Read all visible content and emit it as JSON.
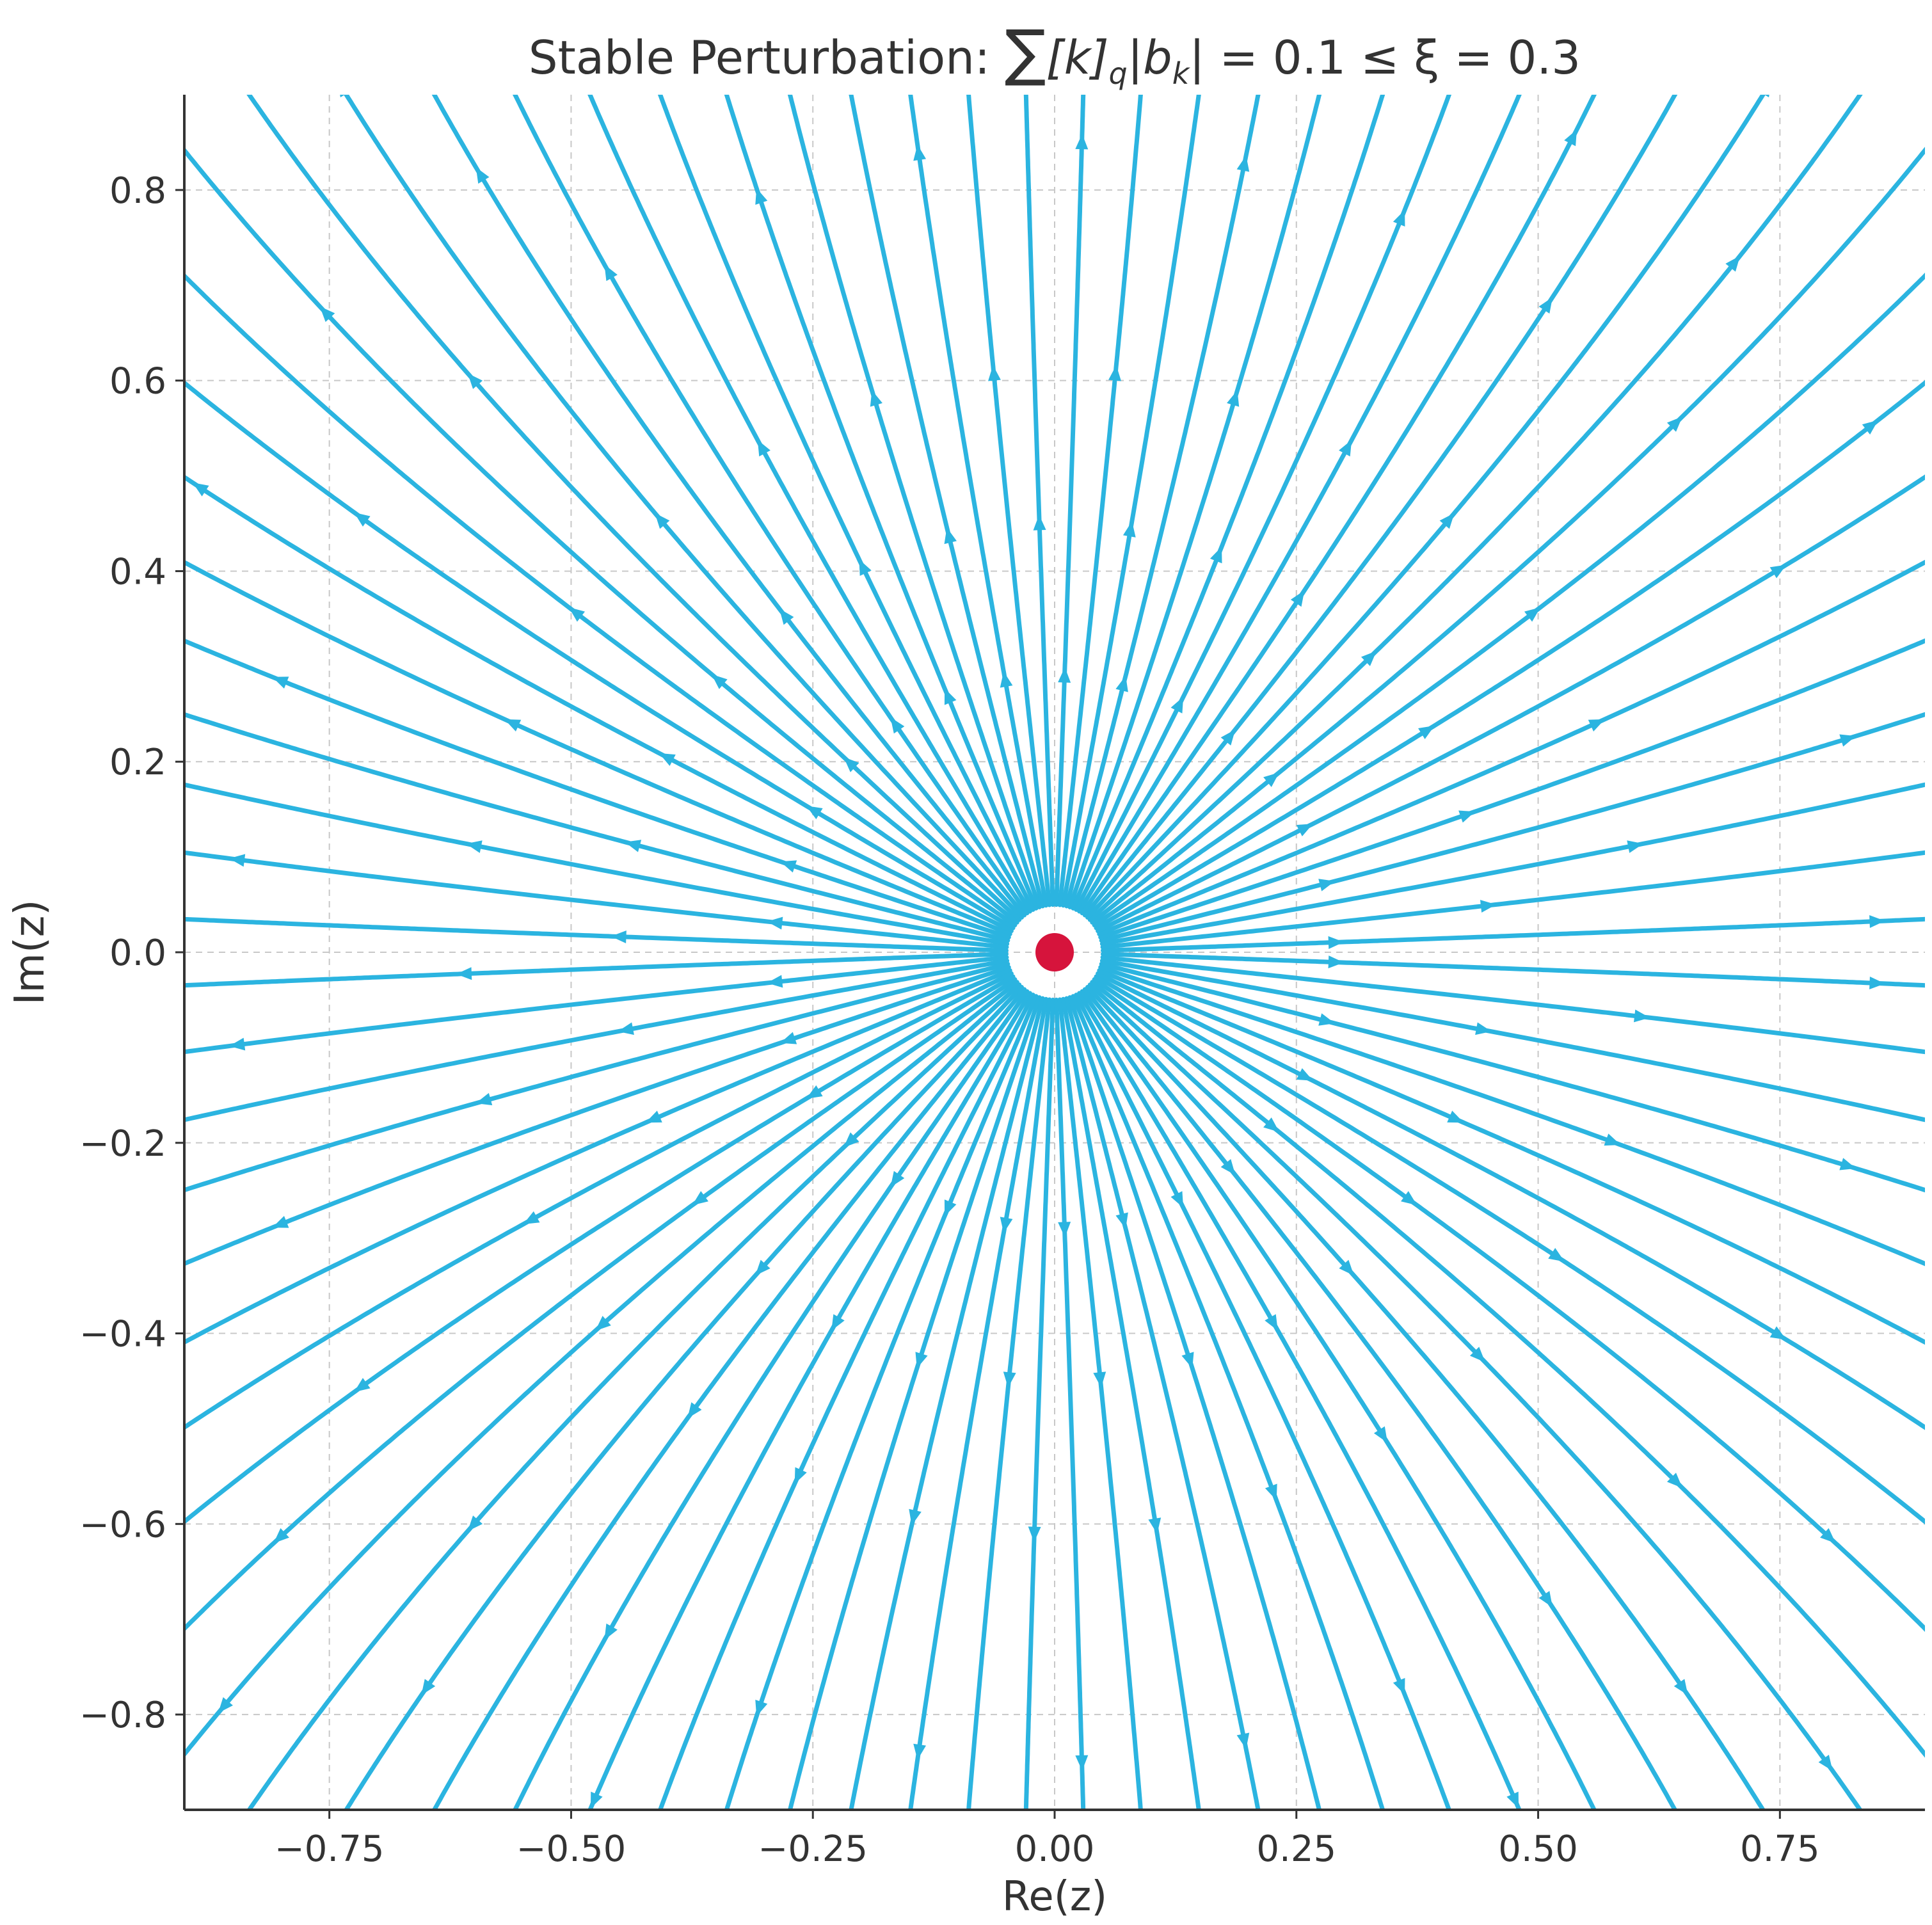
{
  "chart_data": {
    "type": "streamplot",
    "title": {
      "prefix": "Stable Perturbation: ",
      "sum_symbol": "∑",
      "k_bracket": "[k]",
      "q_subscript": "q",
      "abs_open": "|b",
      "k_subscript": "k",
      "rest": "| = 0.1 ≤ ξ = 0.3"
    },
    "xlabel": "Re(z)",
    "ylabel": "Im(z)",
    "xlim": [
      -0.9,
      0.9
    ],
    "ylim": [
      -0.9,
      0.9
    ],
    "xticks": [
      {
        "value": -0.75,
        "label": "−0.75"
      },
      {
        "value": -0.5,
        "label": "−0.50"
      },
      {
        "value": -0.25,
        "label": "−0.25"
      },
      {
        "value": 0.0,
        "label": "0.00"
      },
      {
        "value": 0.25,
        "label": "0.25"
      },
      {
        "value": 0.5,
        "label": "0.50"
      },
      {
        "value": 0.75,
        "label": "0.75"
      }
    ],
    "yticks": [
      {
        "value": -0.8,
        "label": "−0.8"
      },
      {
        "value": -0.6,
        "label": "−0.6"
      },
      {
        "value": -0.4,
        "label": "−0.4"
      },
      {
        "value": -0.2,
        "label": "−0.2"
      },
      {
        "value": 0.0,
        "label": "0.0"
      },
      {
        "value": 0.2,
        "label": "0.2"
      },
      {
        "value": 0.4,
        "label": "0.4"
      },
      {
        "value": 0.6,
        "label": "0.6"
      },
      {
        "value": 0.8,
        "label": "0.8"
      }
    ],
    "grid": true,
    "field": "radial source at origin; flow curves outward, bending vertically away from the real axis (f(z) = z(1 + 0.1 z²))",
    "fixed_point": {
      "x": 0.0,
      "y": 0.0,
      "color": "#d6143c"
    },
    "stream_color": "#2bb4e0",
    "grid_color": "#c8c8c8",
    "axis_color": "#333333"
  }
}
